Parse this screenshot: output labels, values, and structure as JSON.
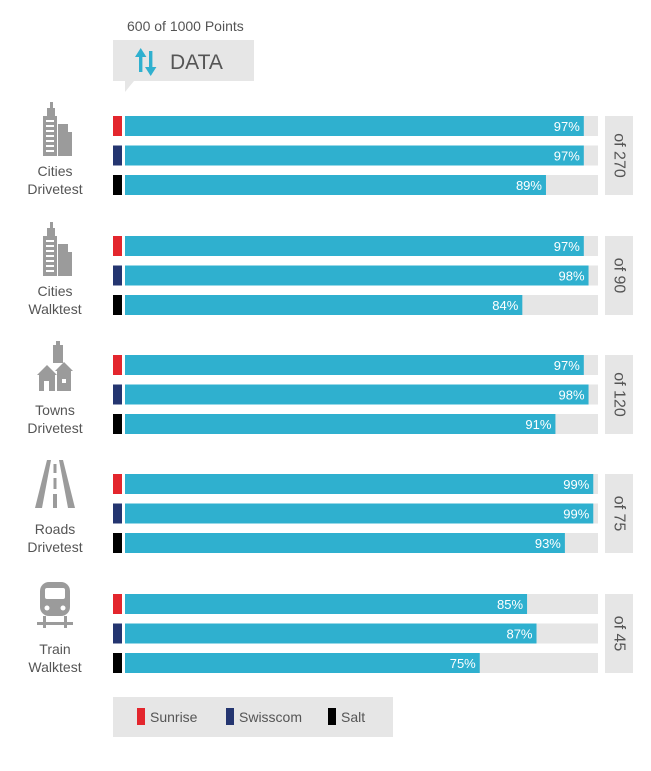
{
  "header": {
    "points_label": "600 of 1000 Points",
    "category_label": "DATA",
    "category_icon": "up-down-arrows-icon"
  },
  "colors": {
    "bar": "#2fb0cf",
    "track": "#e6e6e6",
    "label_box": "#e6e6e6",
    "Sunrise": "#e3262d",
    "Swisscom": "#243570",
    "Salt": "#000000"
  },
  "chart_data": {
    "type": "bar",
    "orientation": "horizontal",
    "xlim": [
      0,
      100
    ],
    "unit": "%",
    "operators": [
      "Sunrise",
      "Swisscom",
      "Salt"
    ],
    "groups": [
      {
        "name_lines": [
          "Cities",
          "Drivetest"
        ],
        "icon": "city-buildings-icon",
        "total_label": "of 270",
        "values": [
          97,
          97,
          89
        ],
        "labels": [
          "97%",
          "97%",
          "89%"
        ]
      },
      {
        "name_lines": [
          "Cities",
          "Walktest"
        ],
        "icon": "city-buildings-icon",
        "total_label": "of 90",
        "values": [
          97,
          98,
          84
        ],
        "labels": [
          "97%",
          "98%",
          "84%"
        ]
      },
      {
        "name_lines": [
          "Towns",
          "Drivetest"
        ],
        "icon": "town-houses-icon",
        "total_label": "of 120",
        "values": [
          97,
          98,
          91
        ],
        "labels": [
          "97%",
          "98%",
          "91%"
        ]
      },
      {
        "name_lines": [
          "Roads",
          "Drivetest"
        ],
        "icon": "road-icon",
        "total_label": "of 75",
        "values": [
          99,
          99,
          93
        ],
        "labels": [
          "99%",
          "99%",
          "93%"
        ]
      },
      {
        "name_lines": [
          "Train",
          "Walktest"
        ],
        "icon": "train-icon",
        "total_label": "of 45",
        "values": [
          85,
          87,
          75
        ],
        "labels": [
          "85%",
          "87%",
          "75%"
        ]
      }
    ],
    "legend": {
      "placement": "bottom",
      "entries": [
        "Sunrise",
        "Swisscom",
        "Salt"
      ]
    }
  }
}
